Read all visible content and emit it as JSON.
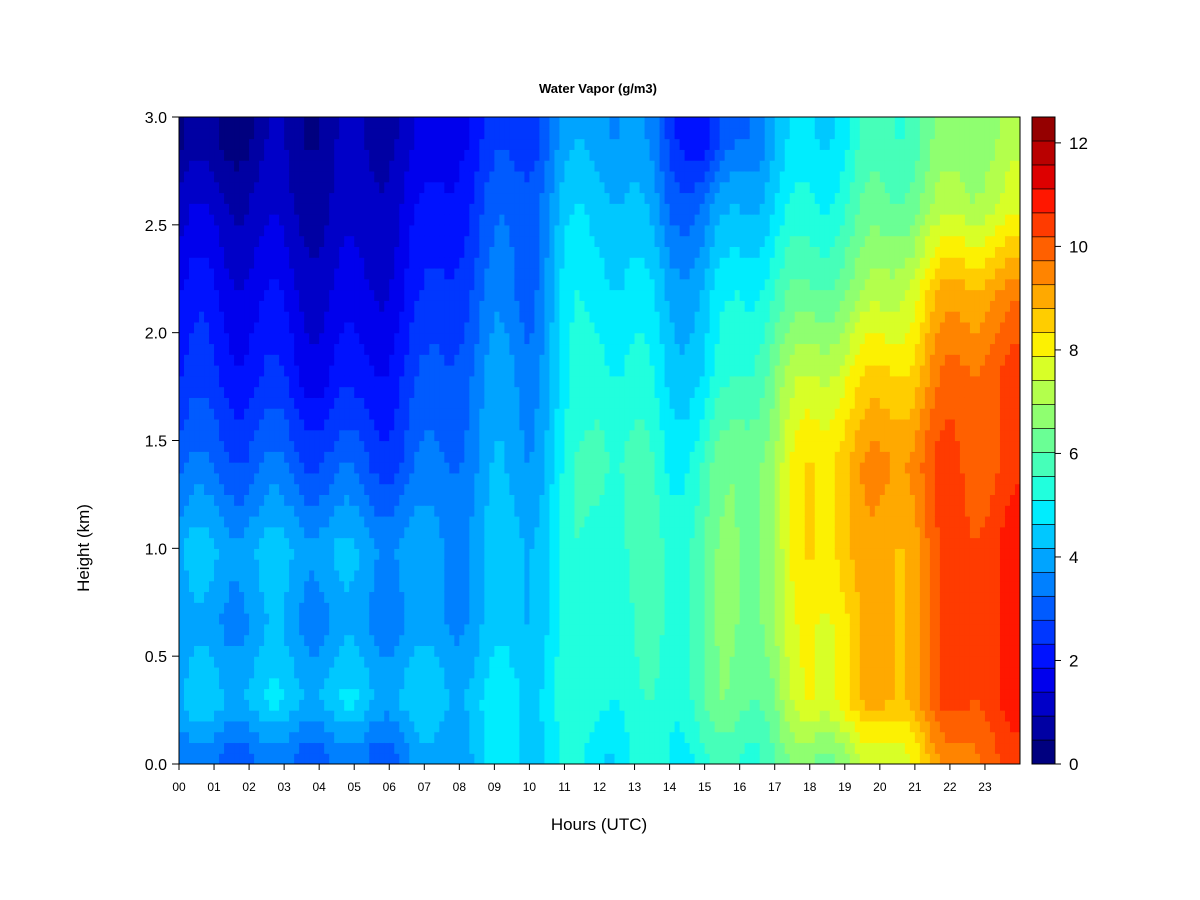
{
  "chart_data": {
    "type": "heatmap",
    "title": "Water Vapor (g/m3)",
    "xlabel": "Hours (UTC)",
    "ylabel": "Height (km)",
    "x_ticks": [
      "00",
      "01",
      "02",
      "03",
      "04",
      "05",
      "06",
      "07",
      "08",
      "09",
      "10",
      "11",
      "12",
      "13",
      "14",
      "15",
      "16",
      "17",
      "18",
      "19",
      "20",
      "21",
      "22",
      "23"
    ],
    "y_ticks": [
      "0.0",
      "0.5",
      "1.0",
      "1.5",
      "2.0",
      "2.5",
      "3.0"
    ],
    "xlim": [
      0,
      24
    ],
    "ylim": [
      0,
      3.0
    ],
    "colorbar": {
      "min": 0,
      "max": 12.5,
      "step": 0.5,
      "ticks": [
        "0",
        "2",
        "4",
        "6",
        "8",
        "10",
        "12"
      ],
      "colors": [
        "#00007f",
        "#0000a3",
        "#0000c8",
        "#0000ed",
        "#0012ff",
        "#0037ff",
        "#005bff",
        "#0080ff",
        "#00a4ff",
        "#00c8ff",
        "#00edfe",
        "#21ffdd",
        "#46ffb9",
        "#6aff95",
        "#8fff70",
        "#b3ff4c",
        "#d8ff27",
        "#fcf102",
        "#ffcd00",
        "#ffa900",
        "#ff8400",
        "#ff6000",
        "#ff3b00",
        "#ff1700",
        "#dd0000",
        "#b90000",
        "#950000"
      ]
    },
    "heights_km": [
      0.05,
      0.3,
      0.65,
      1.0,
      1.4,
      1.8,
      2.2,
      2.6,
      2.9
    ],
    "hours": [
      0,
      1,
      2,
      3,
      4,
      5,
      6,
      7,
      8,
      9,
      10,
      11,
      12,
      13,
      14,
      15,
      16,
      17,
      18,
      19,
      20,
      21,
      22,
      23,
      24
    ],
    "z": [
      [
        3.5,
        3.5,
        3.5,
        3.5,
        3.5,
        3.5,
        3.5,
        4.0,
        4.5,
        5.0,
        5.2,
        5.3,
        5.3,
        5.4,
        5.6,
        5.8,
        6.0,
        6.5,
        7.0,
        7.5,
        8.0,
        9.0,
        10.0,
        11.0,
        11.0
      ],
      [
        4.5,
        4.7,
        4.8,
        4.8,
        4.8,
        4.8,
        4.7,
        4.7,
        4.8,
        5.0,
        5.2,
        5.5,
        6.0,
        5.6,
        5.8,
        6.5,
        6.8,
        7.0,
        8.5,
        9.0,
        9.5,
        10.0,
        11.0,
        11.5,
        11.5
      ],
      [
        4.0,
        4.0,
        4.2,
        4.2,
        4.0,
        4.0,
        4.0,
        4.0,
        4.2,
        4.5,
        4.8,
        5.5,
        6.0,
        5.8,
        6.0,
        6.5,
        7.0,
        7.5,
        8.5,
        9.0,
        9.5,
        10.0,
        11.0,
        11.5,
        11.5
      ],
      [
        4.5,
        4.5,
        4.5,
        4.5,
        4.5,
        4.3,
        4.3,
        4.0,
        4.2,
        4.5,
        4.8,
        5.5,
        6.0,
        6.0,
        6.0,
        6.5,
        7.0,
        7.5,
        9.0,
        9.5,
        9.5,
        10.0,
        11.0,
        11.5,
        11.5
      ],
      [
        3.3,
        3.3,
        3.3,
        3.3,
        3.2,
        3.1,
        3.0,
        3.3,
        3.8,
        4.2,
        4.3,
        5.3,
        6.5,
        6.0,
        5.5,
        6.0,
        7.0,
        7.5,
        9.0,
        9.5,
        10.0,
        10.5,
        11.0,
        11.0,
        11.0
      ],
      [
        2.5,
        2.5,
        2.4,
        2.3,
        2.0,
        2.0,
        2.4,
        2.8,
        3.5,
        4.0,
        4.0,
        5.0,
        6.0,
        5.5,
        5.0,
        5.0,
        6.0,
        7.0,
        8.0,
        8.5,
        9.0,
        9.5,
        10.5,
        11.0,
        11.0
      ],
      [
        2.0,
        2.0,
        1.8,
        1.7,
        1.5,
        1.4,
        1.8,
        2.2,
        3.0,
        3.5,
        3.5,
        5.0,
        5.5,
        5.0,
        4.5,
        4.5,
        5.5,
        6.0,
        6.5,
        7.0,
        7.5,
        8.5,
        9.5,
        10.0,
        10.0
      ],
      [
        1.2,
        1.2,
        1.2,
        1.0,
        1.0,
        1.0,
        1.5,
        1.8,
        2.5,
        3.0,
        3.5,
        4.5,
        5.0,
        4.5,
        3.5,
        3.5,
        4.5,
        5.0,
        5.5,
        6.0,
        6.5,
        7.0,
        7.5,
        8.0,
        8.0
      ],
      [
        0.4,
        0.5,
        0.6,
        0.8,
        0.8,
        0.8,
        1.2,
        1.2,
        2.2,
        2.5,
        3.0,
        4.0,
        4.5,
        4.0,
        3.0,
        2.0,
        3.5,
        4.5,
        5.0,
        5.5,
        6.0,
        6.5,
        7.0,
        7.5,
        7.5
      ]
    ]
  }
}
